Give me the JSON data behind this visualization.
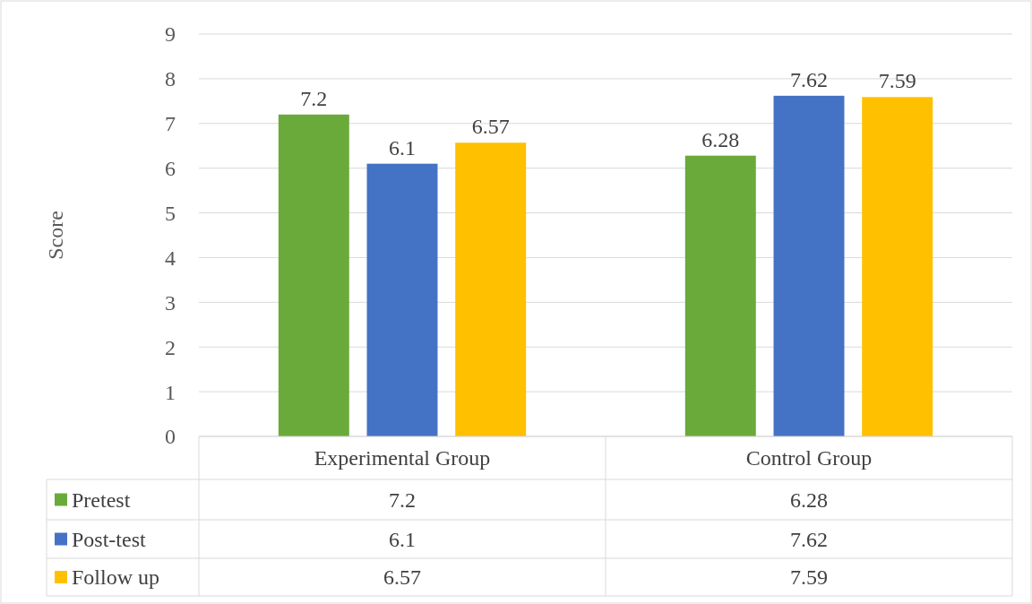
{
  "chart_data": {
    "type": "bar",
    "ylabel": "Score",
    "categories": [
      "Experimental Group",
      "Control Group"
    ],
    "series": [
      {
        "name": "Pretest",
        "color": "#6aaa3a",
        "values": [
          7.2,
          6.28
        ],
        "value_labels": [
          "7.2",
          "6.28"
        ]
      },
      {
        "name": "Post-test",
        "color": "#4472c4",
        "values": [
          6.1,
          7.62
        ],
        "value_labels": [
          "6.1",
          "7.62"
        ]
      },
      {
        "name": "Follow up",
        "color": "#ffc000",
        "values": [
          6.57,
          7.59
        ],
        "value_labels": [
          "6.57",
          "7.59"
        ]
      }
    ],
    "ylim": [
      0,
      9
    ],
    "yticks": [
      0,
      1,
      2,
      3,
      4,
      5,
      6,
      7,
      8,
      9
    ],
    "grid": "y",
    "legend": "bottom",
    "annotations": [
      "7.2",
      "6.28",
      "6.1",
      "7.62",
      "6.57",
      "7.59"
    ]
  }
}
